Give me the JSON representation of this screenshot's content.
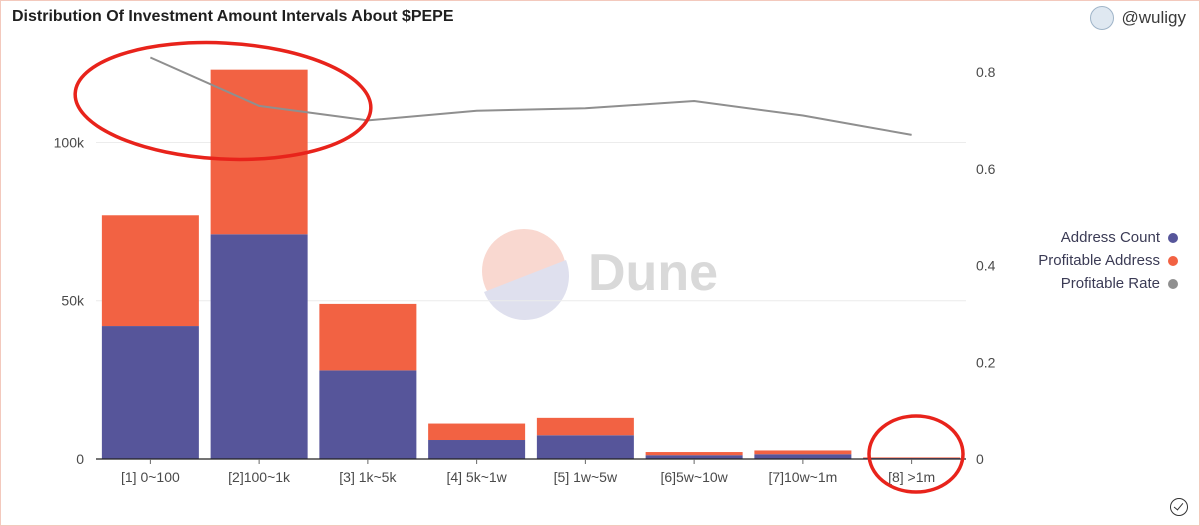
{
  "title": "Distribution Of Investment Amount Intervals About $PEPE",
  "author": {
    "handle": "@wuligy",
    "avatar_icon": "user-avatar-icon"
  },
  "watermark": {
    "text": "Dune"
  },
  "colors": {
    "address_count": "#56559a",
    "profitable_address": "#f26243",
    "profitable_rate": "#8f8f8f",
    "highlight_circle": "#e8231b"
  },
  "legend": [
    {
      "label": "Address Count",
      "color": "#56559a"
    },
    {
      "label": "Profitable Address",
      "color": "#f26243"
    },
    {
      "label": "Profitable Rate",
      "color": "#8f8f8f"
    }
  ],
  "chart_data": {
    "type": "bar",
    "stacked": true,
    "categories": [
      "[1] 0~100",
      "[2]100~1k",
      "[3] 1k~5k",
      "[4] 5k~1w",
      "[5] 1w~5w",
      "[6]5w~10w",
      "[7]10w~1m",
      "[8] >1m"
    ],
    "series": [
      {
        "name": "Address Count",
        "axis": "left",
        "values": [
          42000,
          71000,
          28000,
          6000,
          7500,
          1200,
          1500,
          300
        ]
      },
      {
        "name": "Profitable Address",
        "axis": "left",
        "values": [
          35000,
          52000,
          21000,
          5200,
          5500,
          1000,
          1200,
          200
        ]
      },
      {
        "name": "Profitable Rate",
        "type": "line",
        "axis": "right",
        "values": [
          0.83,
          0.73,
          0.7,
          0.72,
          0.725,
          0.74,
          0.71,
          0.67
        ]
      }
    ],
    "y_left": {
      "ticks": [
        0,
        50000,
        100000
      ],
      "tick_labels": [
        "0",
        "50k",
        "100k"
      ],
      "range": [
        0,
        127000
      ]
    },
    "y_right": {
      "ticks": [
        0,
        0.2,
        0.4,
        0.6,
        0.8
      ],
      "tick_labels": [
        "0",
        "0.2",
        "0.4",
        "0.6",
        "0.8"
      ],
      "range": [
        0,
        0.8
      ]
    },
    "grid": true,
    "legend_position": "right"
  }
}
